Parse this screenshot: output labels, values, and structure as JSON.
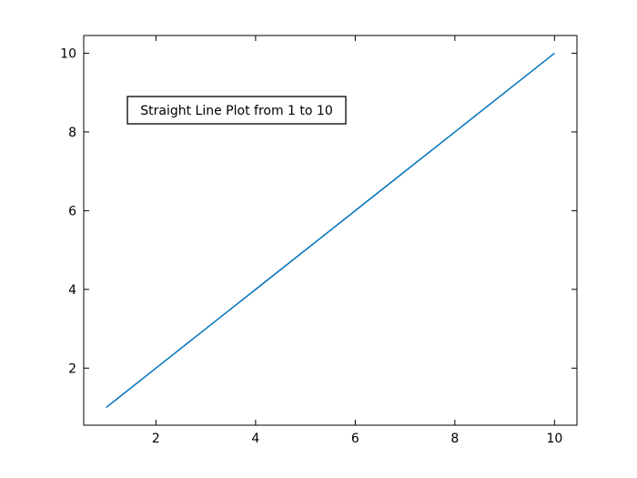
{
  "chart_data": {
    "type": "line",
    "title": "",
    "xlabel": "",
    "ylabel": "",
    "xlim": [
      0.55,
      10.45
    ],
    "ylim": [
      0.55,
      10.45
    ],
    "x_ticks": [
      2,
      4,
      6,
      8,
      10
    ],
    "y_ticks": [
      2,
      4,
      6,
      8,
      10
    ],
    "grid": false,
    "annotation": "Straight Line Plot from 1 to 10",
    "series": [
      {
        "color": "#0072BD",
        "x": [
          1,
          2,
          3,
          4,
          5,
          6,
          7,
          8,
          9,
          10
        ],
        "y": [
          1,
          2,
          3,
          4,
          5,
          6,
          7,
          8,
          9,
          10
        ]
      }
    ]
  }
}
